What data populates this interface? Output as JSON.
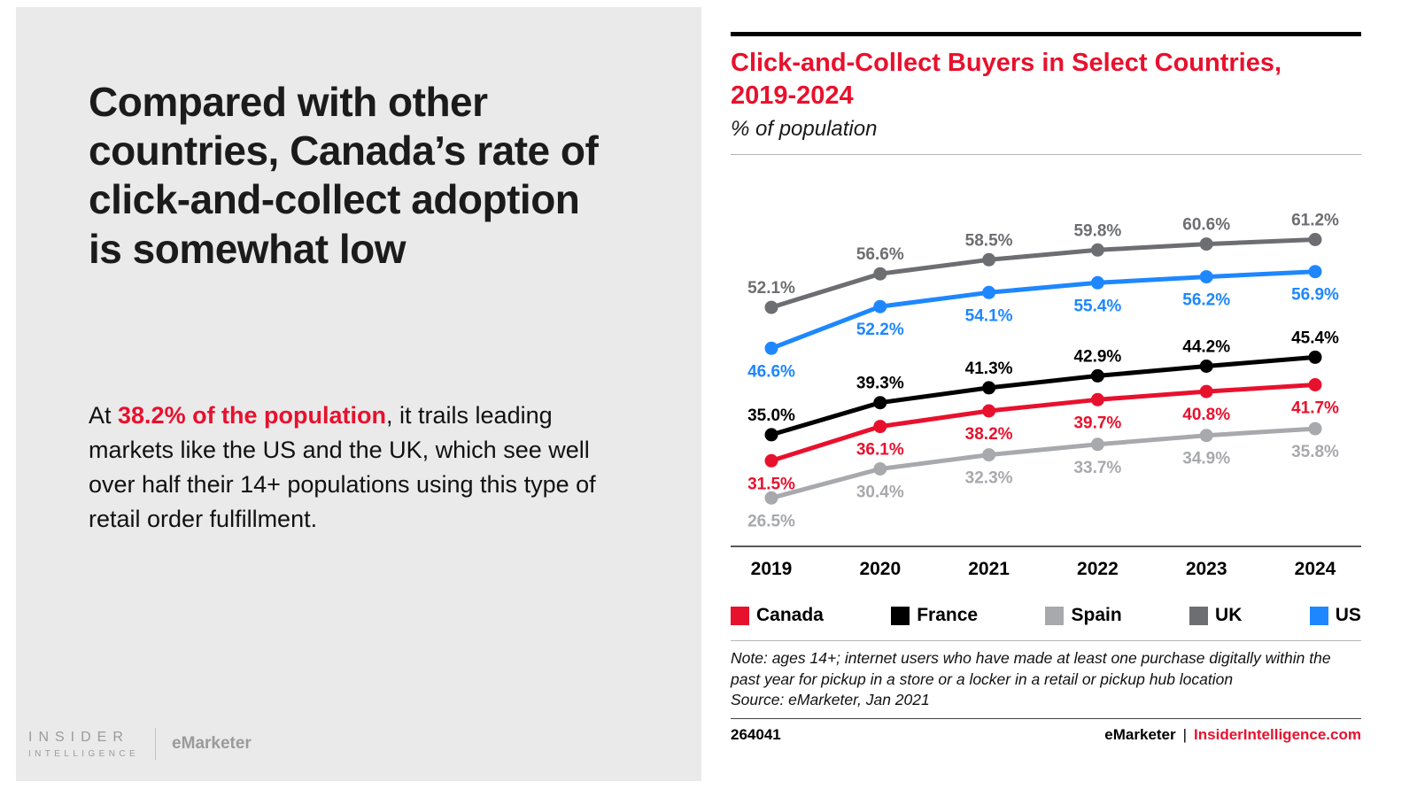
{
  "left_panel": {
    "headline": "Compared with other countries, Canada’s rate of click-and-collect adoption is somewhat low",
    "body_prefix": "At ",
    "body_highlight": "38.2% of the population",
    "body_suffix": ", it trails leading markets like the US and the UK, which see well over half their 14+ populations using this type of retail order fulfillment.",
    "logo_insider_line1": "INSIDER",
    "logo_insider_line2": "INTELLIGENCE",
    "logo_emarketer": "eMarketer"
  },
  "chart_panel": {
    "title_line1": "Click-and-Collect Buyers in Select Countries,",
    "title_line2": "2019-2024",
    "subtitle": "% of population",
    "note": "Note: ages 14+; internet users who have made at least one purchase digitally within the past year for pickup in a store or a locker in a retail or pickup hub location",
    "source": "Source: eMarketer, Jan 2021",
    "chart_id": "264041",
    "footer_brand": "eMarketer",
    "footer_separator": "|",
    "footer_site": "InsiderIntelligence.com"
  },
  "colors": {
    "accent_red": "#e8112d",
    "left_panel_bg": "#eaeaeb",
    "axis_gray": "#58595b"
  },
  "chart_data": {
    "type": "line",
    "title": "Click-and-Collect Buyers in Select Countries, 2019-2024",
    "ylabel": "% of population",
    "x": [
      2019,
      2020,
      2021,
      2022,
      2023,
      2024
    ],
    "series": [
      {
        "name": "Canada",
        "color": "#e8112d",
        "label_position": "below",
        "values": [
          31.5,
          36.1,
          38.2,
          39.7,
          40.8,
          41.7
        ]
      },
      {
        "name": "France",
        "color": "#000000",
        "label_position": "above",
        "values": [
          35.0,
          39.3,
          41.3,
          42.9,
          44.2,
          45.4
        ]
      },
      {
        "name": "Spain",
        "color": "#a8a9ad",
        "label_position": "below",
        "values": [
          26.5,
          30.4,
          32.3,
          33.7,
          34.9,
          35.8
        ]
      },
      {
        "name": "UK",
        "color": "#6d6e71",
        "label_position": "above",
        "values": [
          52.1,
          56.6,
          58.5,
          59.8,
          60.6,
          61.2
        ]
      },
      {
        "name": "US",
        "color": "#1e87ff",
        "label_position": "below",
        "values": [
          46.6,
          52.2,
          54.1,
          55.4,
          56.2,
          56.9
        ]
      }
    ],
    "ylim": [
      20,
      64
    ],
    "grid": false,
    "legend_position": "bottom",
    "data_labels": true
  }
}
